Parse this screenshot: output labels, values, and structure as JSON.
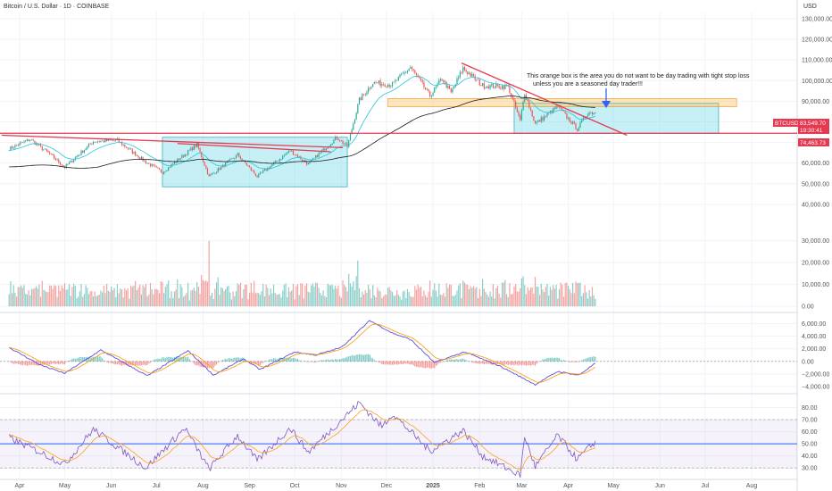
{
  "header": {
    "title": "Bitcoin / U.S. Dollar · 1D · COINBASE",
    "currency": "USD"
  },
  "price_tag": {
    "symbol": "BTCUSD",
    "price": "83,549.70",
    "countdown": "19:30:41"
  },
  "level_tag": "74,463.73",
  "annotation": {
    "lines": [
      "This orange box is the area you do not want to be day trading with tight stop loss",
      "unless you are a seasoned day trader!!!"
    ]
  },
  "colors": {
    "up": "#26a69a",
    "down": "#ef5350",
    "trend": "#e53950",
    "zone_teal": "#4dd0e1",
    "zone_orange": "#ffb74d",
    "sma": "#1a1a1a",
    "ema": "#26c6da",
    "macd": "#5c4fd6",
    "signal": "#ff9800",
    "rsi": "#7e57c2",
    "arrow": "#2962ff"
  },
  "chart_data": {
    "type": "candlestick",
    "x_axis": {
      "ticks": [
        {
          "label": "Apr",
          "date": "2024-04-01"
        },
        {
          "label": "May",
          "date": "2024-05-01"
        },
        {
          "label": "Jun",
          "date": "2024-06-01"
        },
        {
          "label": "Jul",
          "date": "2024-07-01"
        },
        {
          "label": "Aug",
          "date": "2024-08-01"
        },
        {
          "label": "Sep",
          "date": "2024-09-01"
        },
        {
          "label": "Oct",
          "date": "2024-10-01"
        },
        {
          "label": "Nov",
          "date": "2024-11-01"
        },
        {
          "label": "Dec",
          "date": "2024-12-01"
        },
        {
          "label": "2025",
          "date": "2025-01-01"
        },
        {
          "label": "Feb",
          "date": "2025-02-01"
        },
        {
          "label": "Mar",
          "date": "2025-03-01"
        },
        {
          "label": "Apr",
          "date": "2025-04-01"
        },
        {
          "label": "May",
          "date": "2025-05-01"
        },
        {
          "label": "Jun",
          "date": "2025-06-01"
        },
        {
          "label": "Jul",
          "date": "2025-07-01"
        },
        {
          "label": "Aug",
          "date": "2025-08-01"
        }
      ]
    },
    "price_axis": {
      "range": [
        30000,
        133000
      ],
      "ticks": [
        "130,000.00",
        "120,000.00",
        "110,000.00",
        "100,000.00",
        "90,000.00",
        "80,000.00",
        "70,000.00",
        "60,000.00",
        "50,000.00",
        "40,000.00"
      ]
    },
    "volume_axis": {
      "range": [
        -2000,
        36000
      ],
      "ticks": [
        "30,000.00",
        "20,000.00",
        "10,000.00",
        "0.00"
      ]
    },
    "macd_axis": {
      "range": [
        -5000,
        7500
      ],
      "ticks": [
        "6,000.00",
        "4,000.00",
        "2,000.00",
        "0.00",
        "−2,000.00",
        "−4,000.00"
      ]
    },
    "rsi_axis": {
      "range": [
        22,
        90
      ],
      "ticks": [
        "80.00",
        "70.00",
        "60.00",
        "50.00",
        "40.00",
        "30.00"
      ]
    },
    "price_anchors": [
      {
        "date": "2024-03-25",
        "price": 67000
      },
      {
        "date": "2024-04-08",
        "price": 71500
      },
      {
        "date": "2024-04-20",
        "price": 65000
      },
      {
        "date": "2024-05-01",
        "price": 58000
      },
      {
        "date": "2024-05-20",
        "price": 70500
      },
      {
        "date": "2024-06-05",
        "price": 71000
      },
      {
        "date": "2024-06-24",
        "price": 60500
      },
      {
        "date": "2024-07-05",
        "price": 55500
      },
      {
        "date": "2024-07-28",
        "price": 69000
      },
      {
        "date": "2024-08-05",
        "price": 53500
      },
      {
        "date": "2024-08-24",
        "price": 64000
      },
      {
        "date": "2024-09-06",
        "price": 53500
      },
      {
        "date": "2024-09-28",
        "price": 66000
      },
      {
        "date": "2024-10-10",
        "price": 59500
      },
      {
        "date": "2024-10-29",
        "price": 72500
      },
      {
        "date": "2024-11-05",
        "price": 68000
      },
      {
        "date": "2024-11-13",
        "price": 90500
      },
      {
        "date": "2024-11-22",
        "price": 99000
      },
      {
        "date": "2024-12-05",
        "price": 98000
      },
      {
        "date": "2024-12-17",
        "price": 106500
      },
      {
        "date": "2024-12-30",
        "price": 92500
      },
      {
        "date": "2025-01-07",
        "price": 101000
      },
      {
        "date": "2025-01-13",
        "price": 94000
      },
      {
        "date": "2025-01-21",
        "price": 106000
      },
      {
        "date": "2025-02-03",
        "price": 97500
      },
      {
        "date": "2025-02-20",
        "price": 97000
      },
      {
        "date": "2025-02-28",
        "price": 80500
      },
      {
        "date": "2025-03-03",
        "price": 94000
      },
      {
        "date": "2025-03-10",
        "price": 79000
      },
      {
        "date": "2025-03-25",
        "price": 87500
      },
      {
        "date": "2025-04-07",
        "price": 76500
      },
      {
        "date": "2025-04-14",
        "price": 84500
      },
      {
        "date": "2025-04-19",
        "price": 84500
      }
    ],
    "volume_spikes": [
      {
        "date": "2024-08-05",
        "value": 30000
      },
      {
        "date": "2024-11-12",
        "value": 21000
      },
      {
        "date": "2025-02-03",
        "value": 12500
      },
      {
        "date": "2025-03-10",
        "value": 13500
      }
    ],
    "horizontal_level": {
      "price": 74463.73
    },
    "trendlines": [
      {
        "from": {
          "date": "2024-03-20",
          "price": 73500
        },
        "to": {
          "date": "2024-11-02",
          "price": 67500
        }
      },
      {
        "from": {
          "date": "2024-07-15",
          "price": 69500
        },
        "to": {
          "date": "2024-10-25",
          "price": 65500
        }
      },
      {
        "from": {
          "date": "2025-01-20",
          "price": 108500
        },
        "to": {
          "date": "2025-05-10",
          "price": 73500
        }
      }
    ],
    "zones": [
      {
        "color": "teal",
        "from": {
          "date": "2024-07-05",
          "price": 72500
        },
        "to": {
          "date": "2024-11-05",
          "price": 48500
        }
      },
      {
        "color": "teal",
        "from": {
          "date": "2025-02-24",
          "price": 89000
        },
        "to": {
          "date": "2025-07-10",
          "price": 74400
        }
      },
      {
        "color": "orange",
        "from": {
          "date": "2024-12-02",
          "price": 91300
        },
        "to": {
          "date": "2025-07-22",
          "price": 87300
        }
      }
    ],
    "macd_anchors": [
      {
        "date": "2024-03-25",
        "value": 2200
      },
      {
        "date": "2024-04-15",
        "value": -600
      },
      {
        "date": "2024-05-01",
        "value": -1900
      },
      {
        "date": "2024-05-25",
        "value": 1800
      },
      {
        "date": "2024-06-25",
        "value": -2300
      },
      {
        "date": "2024-07-22",
        "value": 1700
      },
      {
        "date": "2024-08-08",
        "value": -2200
      },
      {
        "date": "2024-08-28",
        "value": 400
      },
      {
        "date": "2024-09-08",
        "value": -1300
      },
      {
        "date": "2024-10-01",
        "value": 1500
      },
      {
        "date": "2024-10-15",
        "value": 1000
      },
      {
        "date": "2024-11-01",
        "value": 2200
      },
      {
        "date": "2024-11-20",
        "value": 6500
      },
      {
        "date": "2024-12-05",
        "value": 4500
      },
      {
        "date": "2024-12-17",
        "value": 3500
      },
      {
        "date": "2025-01-02",
        "value": -200
      },
      {
        "date": "2025-01-22",
        "value": 1500
      },
      {
        "date": "2025-02-15",
        "value": -800
      },
      {
        "date": "2025-03-10",
        "value": -3700
      },
      {
        "date": "2025-03-25",
        "value": -1600
      },
      {
        "date": "2025-04-08",
        "value": -2200
      },
      {
        "date": "2025-04-19",
        "value": -300
      }
    ],
    "rsi_anchors": [
      {
        "date": "2024-03-25",
        "value": 55
      },
      {
        "date": "2024-04-13",
        "value": 44
      },
      {
        "date": "2024-05-01",
        "value": 33
      },
      {
        "date": "2024-05-20",
        "value": 62
      },
      {
        "date": "2024-06-24",
        "value": 30
      },
      {
        "date": "2024-07-20",
        "value": 63
      },
      {
        "date": "2024-08-05",
        "value": 29
      },
      {
        "date": "2024-08-24",
        "value": 57
      },
      {
        "date": "2024-09-06",
        "value": 36
      },
      {
        "date": "2024-09-28",
        "value": 63
      },
      {
        "date": "2024-10-10",
        "value": 43
      },
      {
        "date": "2024-10-29",
        "value": 66
      },
      {
        "date": "2024-11-13",
        "value": 84
      },
      {
        "date": "2024-11-28",
        "value": 64
      },
      {
        "date": "2024-12-05",
        "value": 75
      },
      {
        "date": "2024-12-30",
        "value": 44
      },
      {
        "date": "2025-01-21",
        "value": 61
      },
      {
        "date": "2025-02-03",
        "value": 40
      },
      {
        "date": "2025-02-28",
        "value": 24
      },
      {
        "date": "2025-03-03",
        "value": 56
      },
      {
        "date": "2025-03-10",
        "value": 31
      },
      {
        "date": "2025-03-25",
        "value": 57
      },
      {
        "date": "2025-04-07",
        "value": 37
      },
      {
        "date": "2025-04-19",
        "value": 52
      }
    ],
    "rsi_band": [
      30,
      70
    ],
    "rsi_midline": 50
  }
}
